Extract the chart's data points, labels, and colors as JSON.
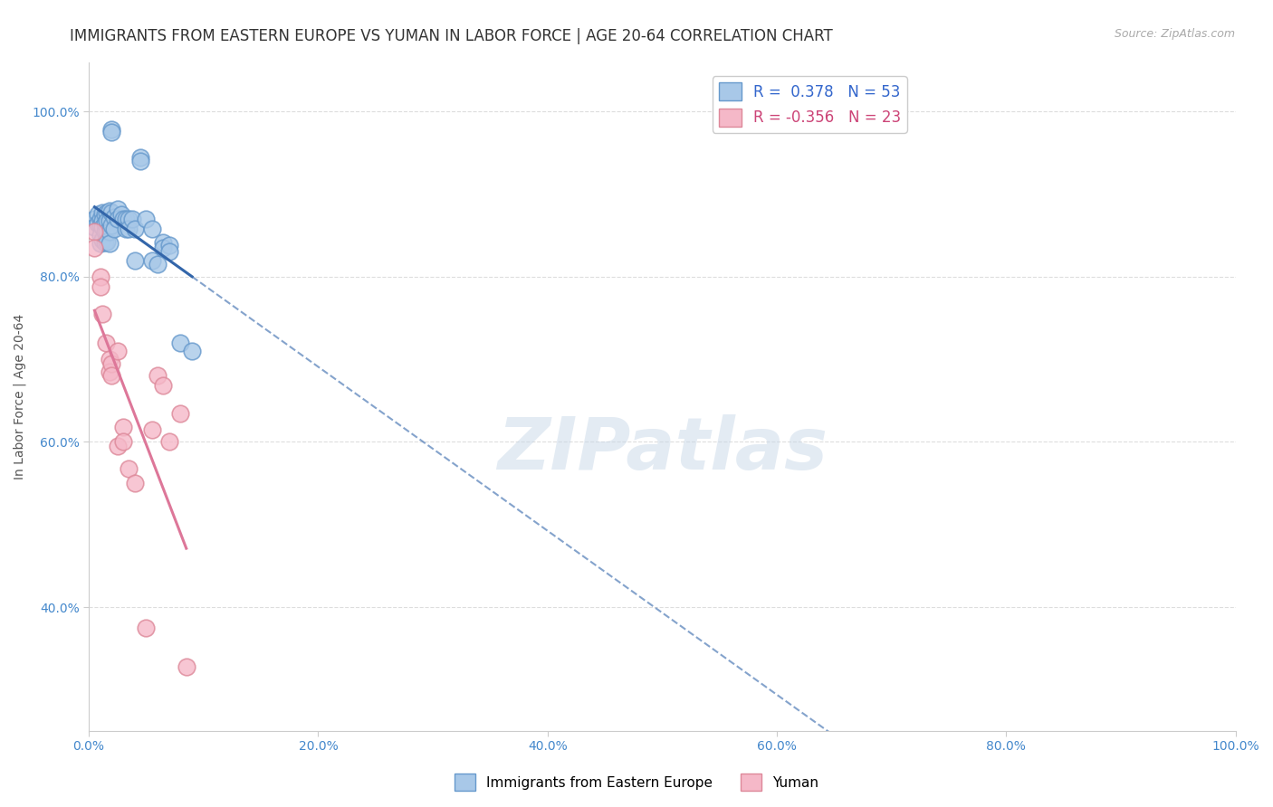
{
  "title": "IMMIGRANTS FROM EASTERN EUROPE VS YUMAN IN LABOR FORCE | AGE 20-64 CORRELATION CHART",
  "source": "Source: ZipAtlas.com",
  "ylabel": "In Labor Force | Age 20-64",
  "background_color": "#ffffff",
  "plot_bg_color": "#ffffff",
  "grid_color": "#dddddd",
  "blue_r": 0.378,
  "blue_n": 53,
  "pink_r": -0.356,
  "pink_n": 23,
  "blue_color": "#a8c8e8",
  "blue_edge_color": "#6699cc",
  "blue_line_color": "#3366aa",
  "pink_color": "#f5b8c8",
  "pink_edge_color": "#dd8899",
  "pink_line_color": "#dd7799",
  "blue_scatter": [
    [
      0.005,
      0.87
    ],
    [
      0.005,
      0.86
    ],
    [
      0.008,
      0.875
    ],
    [
      0.008,
      0.865
    ],
    [
      0.01,
      0.87
    ],
    [
      0.01,
      0.862
    ],
    [
      0.01,
      0.85
    ],
    [
      0.01,
      0.84
    ],
    [
      0.012,
      0.878
    ],
    [
      0.012,
      0.868
    ],
    [
      0.012,
      0.86
    ],
    [
      0.012,
      0.845
    ],
    [
      0.014,
      0.875
    ],
    [
      0.014,
      0.865
    ],
    [
      0.014,
      0.855
    ],
    [
      0.014,
      0.842
    ],
    [
      0.016,
      0.878
    ],
    [
      0.016,
      0.868
    ],
    [
      0.016,
      0.855
    ],
    [
      0.016,
      0.843
    ],
    [
      0.018,
      0.88
    ],
    [
      0.018,
      0.868
    ],
    [
      0.018,
      0.855
    ],
    [
      0.018,
      0.84
    ],
    [
      0.02,
      0.978
    ],
    [
      0.02,
      0.975
    ],
    [
      0.02,
      0.878
    ],
    [
      0.02,
      0.862
    ],
    [
      0.022,
      0.872
    ],
    [
      0.022,
      0.858
    ],
    [
      0.025,
      0.882
    ],
    [
      0.025,
      0.87
    ],
    [
      0.028,
      0.875
    ],
    [
      0.03,
      0.87
    ],
    [
      0.032,
      0.87
    ],
    [
      0.032,
      0.858
    ],
    [
      0.035,
      0.87
    ],
    [
      0.035,
      0.858
    ],
    [
      0.038,
      0.87
    ],
    [
      0.04,
      0.858
    ],
    [
      0.04,
      0.82
    ],
    [
      0.045,
      0.945
    ],
    [
      0.045,
      0.94
    ],
    [
      0.05,
      0.87
    ],
    [
      0.055,
      0.858
    ],
    [
      0.055,
      0.82
    ],
    [
      0.06,
      0.815
    ],
    [
      0.065,
      0.842
    ],
    [
      0.065,
      0.835
    ],
    [
      0.07,
      0.838
    ],
    [
      0.07,
      0.83
    ],
    [
      0.08,
      0.72
    ],
    [
      0.09,
      0.71
    ]
  ],
  "pink_scatter": [
    [
      0.005,
      0.855
    ],
    [
      0.005,
      0.835
    ],
    [
      0.01,
      0.8
    ],
    [
      0.01,
      0.788
    ],
    [
      0.012,
      0.755
    ],
    [
      0.015,
      0.72
    ],
    [
      0.018,
      0.7
    ],
    [
      0.018,
      0.685
    ],
    [
      0.02,
      0.695
    ],
    [
      0.02,
      0.68
    ],
    [
      0.025,
      0.71
    ],
    [
      0.025,
      0.595
    ],
    [
      0.03,
      0.618
    ],
    [
      0.03,
      0.6
    ],
    [
      0.035,
      0.568
    ],
    [
      0.04,
      0.55
    ],
    [
      0.05,
      0.375
    ],
    [
      0.055,
      0.615
    ],
    [
      0.06,
      0.68
    ],
    [
      0.065,
      0.668
    ],
    [
      0.07,
      0.6
    ],
    [
      0.08,
      0.635
    ],
    [
      0.085,
      0.328
    ]
  ],
  "xlim": [
    0.0,
    1.0
  ],
  "ylim": [
    0.25,
    1.06
  ],
  "yticks": [
    0.4,
    0.6,
    0.8,
    1.0
  ],
  "ytick_labels": [
    "40.0%",
    "60.0%",
    "80.0%",
    "100.0%"
  ],
  "xtick_positions": [
    0.0,
    0.2,
    0.4,
    0.6,
    0.8,
    1.0
  ],
  "xtick_labels": [
    "0.0%",
    "20.0%",
    "40.0%",
    "60.0%",
    "80.0%",
    "100.0%"
  ],
  "legend_labels": [
    "Immigrants from Eastern Europe",
    "Yuman"
  ],
  "watermark": "ZIPatlas",
  "title_fontsize": 12,
  "axis_fontsize": 10,
  "tick_fontsize": 10
}
